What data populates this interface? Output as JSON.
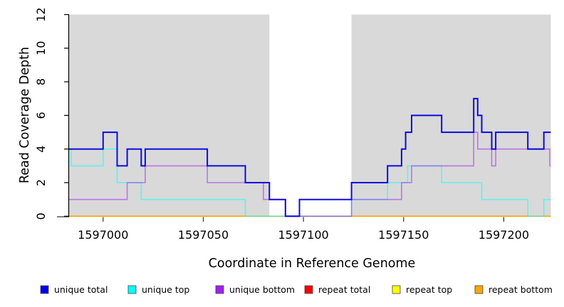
{
  "chart_data": {
    "type": "step-line",
    "title": "",
    "xlabel": "Coordinate in Reference Genome",
    "ylabel": "Read Coverage Depth",
    "x_range": [
      1596983,
      1597223.5
    ],
    "y_range": [
      0,
      12
    ],
    "x_ticks": [
      1597000,
      1597050,
      1597100,
      1597150,
      1597200
    ],
    "y_ticks": [
      0,
      2,
      4,
      6,
      8,
      10,
      12
    ],
    "grid": false,
    "legend_position": "bottom-horizontal",
    "plot_background": "#ffffff",
    "shaded_regions": [
      {
        "from": 1596983,
        "to": 1597083,
        "color": "#d9d9d9"
      },
      {
        "from": 1597124,
        "to": 1597223.5,
        "color": "#d9d9d9"
      }
    ],
    "series": [
      {
        "name": "unique total",
        "legend_color": "#0000ee",
        "line_color": "#0000dd",
        "opacity": 0.95,
        "width": 2.0,
        "z": 6,
        "points": [
          [
            1596983,
            4
          ],
          [
            1597000,
            5
          ],
          [
            1597007,
            3
          ],
          [
            1597012,
            4
          ],
          [
            1597019,
            3
          ],
          [
            1597021,
            4
          ],
          [
            1597052,
            3
          ],
          [
            1597071,
            2
          ],
          [
            1597083,
            1
          ],
          [
            1597091,
            0
          ],
          [
            1597098,
            1
          ],
          [
            1597124,
            2
          ],
          [
            1597142,
            3
          ],
          [
            1597149,
            4
          ],
          [
            1597151,
            5
          ],
          [
            1597154,
            6
          ],
          [
            1597169,
            5
          ],
          [
            1597185,
            7
          ],
          [
            1597187,
            6
          ],
          [
            1597189,
            5
          ],
          [
            1597194,
            4
          ],
          [
            1597196,
            5
          ],
          [
            1597212,
            4
          ],
          [
            1597220,
            5
          ]
        ]
      },
      {
        "name": "unique top",
        "legend_color": "#00ffff",
        "line_color": "#00ffff",
        "opacity": 0.55,
        "width": 1.6,
        "z": 4,
        "points": [
          [
            1596983,
            4
          ],
          [
            1596984,
            3
          ],
          [
            1597000,
            4
          ],
          [
            1597007,
            2
          ],
          [
            1597019,
            1
          ],
          [
            1597071,
            0
          ],
          [
            1597124,
            1
          ],
          [
            1597142,
            2
          ],
          [
            1597152,
            3
          ],
          [
            1597169,
            2
          ],
          [
            1597189,
            1
          ],
          [
            1597212,
            0
          ],
          [
            1597220,
            1
          ]
        ]
      },
      {
        "name": "unique bottom",
        "legend_color": "#a020f0",
        "line_color": "#a020f0",
        "opacity": 0.55,
        "width": 1.6,
        "z": 5,
        "points": [
          [
            1596983,
            1
          ],
          [
            1597012,
            2
          ],
          [
            1597021,
            3
          ],
          [
            1597052,
            2
          ],
          [
            1597080,
            1
          ],
          [
            1597091,
            0
          ],
          [
            1597124,
            1
          ],
          [
            1597149,
            2
          ],
          [
            1597154,
            3
          ],
          [
            1597185,
            5
          ],
          [
            1597187,
            4
          ],
          [
            1597194,
            3
          ],
          [
            1597196,
            4
          ],
          [
            1597223,
            3
          ]
        ]
      },
      {
        "name": "repeat total",
        "legend_color": "#ff0000",
        "line_color": "#ff0000",
        "opacity": 1,
        "width": 1.4,
        "z": 1,
        "points": [
          [
            1596983,
            0
          ]
        ]
      },
      {
        "name": "repeat top",
        "legend_color": "#ffff00",
        "line_color": "#ffff00",
        "opacity": 1,
        "width": 1.4,
        "z": 2,
        "points": [
          [
            1596983,
            0
          ]
        ]
      },
      {
        "name": "repeat bottom",
        "legend_color": "#ffa500",
        "line_color": "#ffa500",
        "opacity": 1,
        "width": 1.6,
        "z": 3,
        "points": [
          [
            1596983,
            0
          ]
        ]
      }
    ]
  },
  "axis_style": {
    "axis_color": "#000000",
    "tick_color": "#333333"
  }
}
